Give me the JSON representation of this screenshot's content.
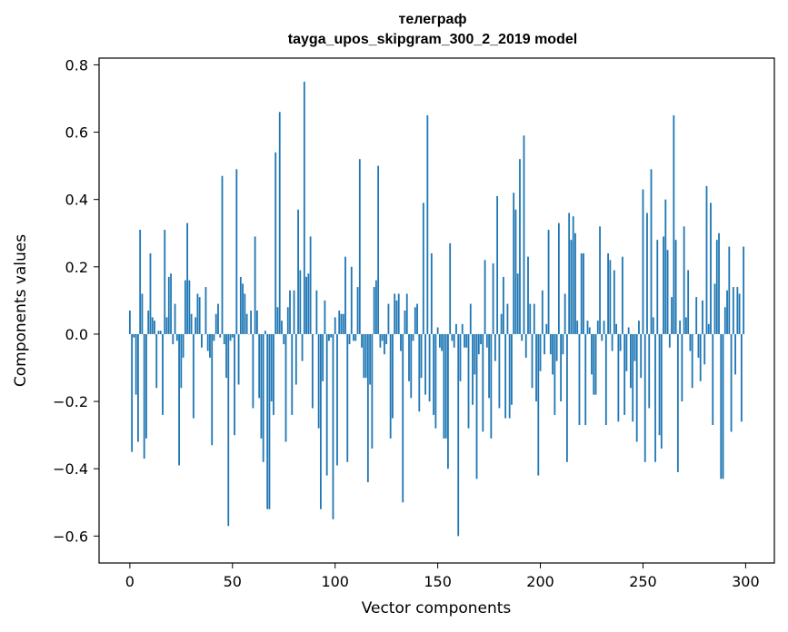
{
  "chart_data": {
    "type": "bar",
    "title": "телеграф",
    "subtitle": "tayga_upos_skipgram_300_2_2019 model",
    "xlabel": "Vector components",
    "ylabel": "Components values",
    "xlim": [
      -15,
      314
    ],
    "ylim": [
      -0.68,
      0.82
    ],
    "x_ticks": [
      0,
      50,
      100,
      150,
      200,
      250,
      300
    ],
    "y_ticks": [
      -0.6,
      -0.4,
      -0.2,
      0.0,
      0.2,
      0.4,
      0.6,
      0.8
    ],
    "x_tick_labels": [
      "0",
      "50",
      "100",
      "150",
      "200",
      "250",
      "300"
    ],
    "y_tick_labels": [
      "−0.6",
      "−0.4",
      "−0.2",
      "0.0",
      "0.2",
      "0.4",
      "0.6",
      "0.8"
    ],
    "grid": false,
    "bar_color": "#1f77b4",
    "values": [
      0.07,
      -0.35,
      -0.01,
      -0.18,
      -0.32,
      0.31,
      0.12,
      -0.37,
      -0.31,
      0.07,
      0.24,
      0.05,
      0.04,
      -0.16,
      0.01,
      0.01,
      -0.24,
      0.31,
      0.05,
      0.17,
      0.18,
      -0.03,
      0.09,
      -0.02,
      -0.39,
      -0.16,
      -0.07,
      0.16,
      0.33,
      0.16,
      0.06,
      -0.25,
      0.05,
      0.12,
      0.11,
      -0.04,
      0.0,
      0.14,
      -0.05,
      -0.07,
      -0.33,
      -0.02,
      0.06,
      0.09,
      -0.01,
      0.47,
      -0.03,
      -0.13,
      -0.57,
      -0.02,
      -0.01,
      -0.3,
      0.49,
      -0.15,
      0.17,
      0.15,
      0.12,
      0.06,
      0.0,
      0.07,
      -0.22,
      0.29,
      0.07,
      -0.19,
      -0.31,
      -0.38,
      0.01,
      -0.52,
      -0.52,
      -0.2,
      -0.24,
      0.54,
      0.08,
      0.66,
      0.04,
      -0.03,
      -0.32,
      0.08,
      0.13,
      -0.24,
      0.13,
      -0.15,
      0.37,
      0.19,
      -0.08,
      0.75,
      0.17,
      0.18,
      0.29,
      -0.22,
      0.0,
      0.13,
      -0.28,
      -0.52,
      -0.14,
      0.1,
      -0.42,
      -0.02,
      -0.01,
      -0.55,
      0.05,
      -0.39,
      0.07,
      0.06,
      0.06,
      0.23,
      -0.38,
      -0.03,
      0.2,
      -0.02,
      -0.02,
      0.14,
      0.52,
      -0.04,
      -0.13,
      -0.13,
      -0.44,
      -0.15,
      -0.34,
      0.14,
      0.16,
      0.5,
      -0.04,
      -0.02,
      -0.06,
      -0.03,
      0.09,
      -0.31,
      -0.25,
      0.12,
      0.1,
      0.12,
      -0.05,
      -0.5,
      0.07,
      0.12,
      -0.14,
      -0.19,
      -0.02,
      0.08,
      0.09,
      -0.23,
      -0.13,
      0.39,
      -0.18,
      0.65,
      -0.2,
      0.24,
      -0.24,
      -0.28,
      0.02,
      -0.04,
      -0.05,
      -0.31,
      -0.31,
      -0.4,
      0.27,
      -0.02,
      -0.04,
      0.03,
      -0.6,
      -0.14,
      0.03,
      -0.04,
      -0.04,
      -0.28,
      0.09,
      -0.21,
      -0.12,
      -0.43,
      -0.06,
      -0.03,
      -0.29,
      0.22,
      -0.04,
      -0.19,
      -0.31,
      0.21,
      -0.08,
      0.41,
      -0.22,
      0.06,
      0.17,
      -0.25,
      0.09,
      -0.25,
      -0.21,
      0.42,
      0.37,
      0.18,
      0.52,
      -0.02,
      0.59,
      -0.07,
      0.23,
      0.09,
      -0.16,
      0.09,
      -0.2,
      -0.42,
      -0.11,
      0.13,
      -0.06,
      0.03,
      0.31,
      -0.06,
      -0.12,
      -0.24,
      -0.08,
      0.33,
      -0.2,
      -0.06,
      0.12,
      -0.38,
      0.36,
      0.28,
      0.35,
      0.3,
      0.04,
      -0.27,
      0.24,
      0.24,
      -0.27,
      0.04,
      0.02,
      -0.12,
      -0.18,
      -0.18,
      0.04,
      0.32,
      -0.02,
      0.04,
      -0.27,
      0.24,
      0.22,
      -0.05,
      0.19,
      0.03,
      -0.26,
      -0.05,
      0.23,
      -0.24,
      -0.11,
      0.02,
      -0.16,
      -0.26,
      -0.08,
      -0.32,
      0.04,
      -0.13,
      0.43,
      -0.38,
      0.36,
      -0.22,
      0.49,
      0.05,
      -0.38,
      0.28,
      -0.3,
      -0.34,
      0.29,
      0.4,
      0.25,
      -0.04,
      0.11,
      0.65,
      0.28,
      -0.41,
      0.04,
      -0.2,
      0.32,
      0.05,
      0.19,
      -0.05,
      -0.16,
      0.0,
      0.11,
      -0.07,
      -0.14,
      0.1,
      -0.09,
      0.44,
      0.03,
      0.39,
      -0.27,
      0.15,
      0.28,
      0.3,
      -0.43,
      -0.43,
      0.08,
      0.13,
      0.26,
      -0.29,
      0.14,
      -0.12,
      0.14,
      0.12,
      -0.26,
      0.26
    ]
  }
}
